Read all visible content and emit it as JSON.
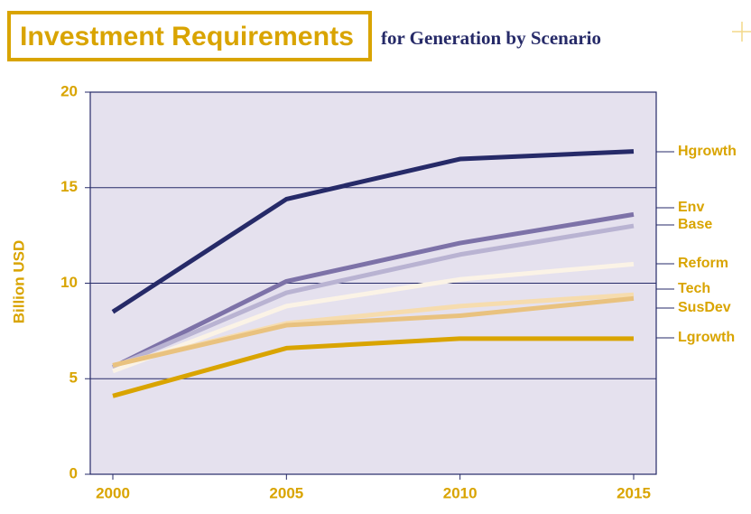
{
  "chart_data": {
    "type": "line",
    "title": "Investment Requirements",
    "subtitle": "for Generation by Scenario",
    "y_label": "Billion USD",
    "x": [
      2000,
      2005,
      2010,
      2015
    ],
    "xticks": [
      2000,
      2005,
      2010,
      2015
    ],
    "ylim": [
      0,
      20
    ],
    "yticks": [
      0,
      5,
      10,
      15,
      20
    ],
    "grid": true,
    "series": [
      {
        "name": "Hgrowth",
        "color": "#262a68",
        "values": [
          8.5,
          14.4,
          16.5,
          16.9
        ]
      },
      {
        "name": "Env",
        "color": "#7d72a8",
        "values": [
          5.6,
          10.1,
          12.1,
          13.6
        ]
      },
      {
        "name": "Base",
        "color": "#b9b3d2",
        "values": [
          5.6,
          9.5,
          11.5,
          13.0
        ]
      },
      {
        "name": "Reform",
        "color": "#fbf3e6",
        "values": [
          5.4,
          8.8,
          10.2,
          11.0
        ]
      },
      {
        "name": "Tech",
        "color": "#f6dcae",
        "values": [
          5.7,
          7.9,
          8.8,
          9.4
        ]
      },
      {
        "name": "SusDev",
        "color": "#e9c27f",
        "values": [
          5.7,
          7.8,
          8.3,
          9.2
        ]
      },
      {
        "name": "Lgrowth",
        "color": "#d9a400",
        "values": [
          4.1,
          6.6,
          7.1,
          7.1
        ]
      }
    ]
  }
}
